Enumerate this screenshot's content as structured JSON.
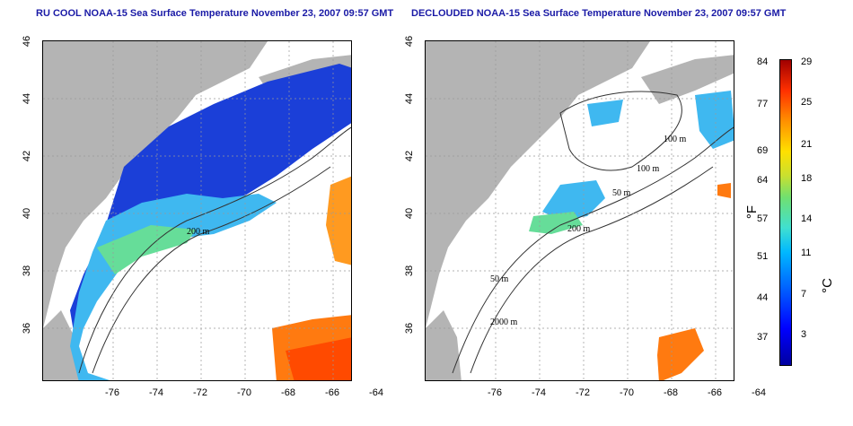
{
  "left_panel": {
    "title": "RU COOL NOAA-15 Sea Surface Temperature November 23, 2007 09:57 GMT",
    "contour_labels": [
      "200 m"
    ]
  },
  "right_panel": {
    "title": "DECLOUDED NOAA-15 Sea Surface Temperature November 23, 2007 09:57 GMT",
    "contour_labels": [
      "100 m",
      "100 m",
      "50 m",
      "200 m",
      "50 m",
      "2000 m"
    ]
  },
  "axes": {
    "x_ticks": [
      "-76",
      "-74",
      "-72",
      "-70",
      "-68",
      "-66",
      "-64"
    ],
    "y_ticks": [
      "46",
      "44",
      "42",
      "40",
      "38",
      "36"
    ]
  },
  "colorbar": {
    "fahrenheit_label": "°F",
    "celsius_label": "°C",
    "fahrenheit_ticks": [
      "84",
      "77",
      "69",
      "64",
      "57",
      "51",
      "44",
      "37"
    ],
    "celsius_ticks": [
      "29",
      "25",
      "21",
      "18",
      "14",
      "11",
      "7",
      "3"
    ],
    "colors": {
      "land": "#b4b4b4",
      "cold": "#0000a0",
      "cool": "#00b8ff",
      "mild": "#70e070",
      "warm": "#ffe000",
      "hot": "#ff3000",
      "max": "#a00000"
    }
  }
}
